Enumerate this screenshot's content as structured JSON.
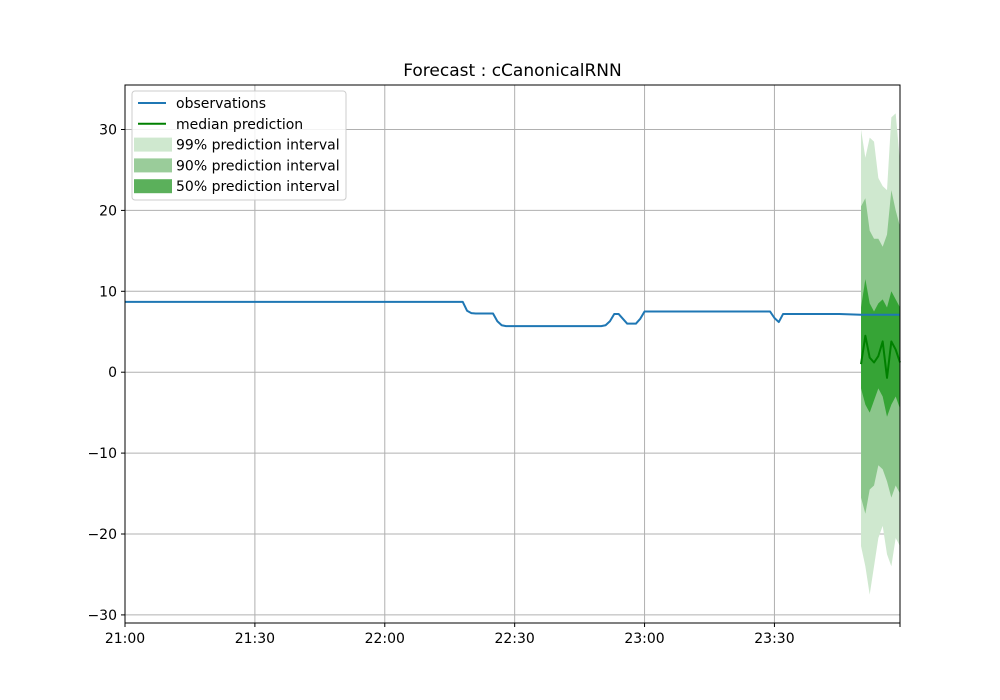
{
  "chart_data": {
    "type": "line",
    "title": "Forecast : cCanonicalRNN",
    "xlabel": "",
    "ylabel": "",
    "x_domain_minutes": [
      0,
      179
    ],
    "ylim": [
      -31,
      35.5
    ],
    "grid": true,
    "legend_position": "upper-left",
    "x_ticks": [
      {
        "label": "21:00",
        "minute": 0
      },
      {
        "label": "21:30",
        "minute": 30
      },
      {
        "label": "22:00",
        "minute": 60
      },
      {
        "label": "22:30",
        "minute": 90
      },
      {
        "label": "23:00",
        "minute": 120
      },
      {
        "label": "23:30",
        "minute": 150
      },
      {
        "label": "",
        "minute": 179
      }
    ],
    "y_ticks": [
      {
        "label": "30",
        "value": 30
      },
      {
        "label": "20",
        "value": 20
      },
      {
        "label": "10",
        "value": 10
      },
      {
        "label": "0",
        "value": 0
      },
      {
        "label": "−10",
        "value": -10
      },
      {
        "label": "−20",
        "value": -20
      },
      {
        "label": "−30",
        "value": -30
      }
    ],
    "colors": {
      "observations": "#1f77b4",
      "median": "#008000",
      "band99": "#cfe8cf",
      "band90": "#7fbf7f",
      "band50": "#2ca02c"
    },
    "legend": [
      {
        "label": "observations",
        "kind": "line",
        "color": "#1f77b4"
      },
      {
        "label": "median prediction",
        "kind": "line",
        "color": "#008000"
      },
      {
        "label": "99% prediction interval",
        "kind": "patch",
        "color": "#cfe8cf"
      },
      {
        "label": "90% prediction interval",
        "kind": "patch",
        "color": "#9acc9a"
      },
      {
        "label": "50% prediction interval",
        "kind": "patch",
        "color": "#5bb05b"
      }
    ],
    "series": [
      {
        "name": "observations",
        "points": [
          [
            0,
            8.7
          ],
          [
            30,
            8.7
          ],
          [
            60,
            8.7
          ],
          [
            70,
            8.7
          ],
          [
            78,
            8.7
          ],
          [
            79,
            7.6
          ],
          [
            80,
            7.3
          ],
          [
            81,
            7.25
          ],
          [
            85,
            7.25
          ],
          [
            86,
            6.3
          ],
          [
            87,
            5.8
          ],
          [
            88,
            5.7
          ],
          [
            95,
            5.7
          ],
          [
            110,
            5.7
          ],
          [
            111,
            5.8
          ],
          [
            112,
            6.3
          ],
          [
            113,
            7.2
          ],
          [
            114,
            7.2
          ],
          [
            115,
            6.6
          ],
          [
            116,
            6.0
          ],
          [
            118,
            6.0
          ],
          [
            119,
            6.6
          ],
          [
            120,
            7.5
          ],
          [
            130,
            7.5
          ],
          [
            145,
            7.5
          ],
          [
            149,
            7.5
          ],
          [
            150,
            6.7
          ],
          [
            151,
            6.2
          ],
          [
            152,
            7.2
          ],
          [
            160,
            7.2
          ],
          [
            165,
            7.2
          ],
          [
            170,
            7.1
          ],
          [
            179,
            7.1
          ]
        ]
      },
      {
        "name": "median prediction",
        "points": [
          [
            170,
            1.0
          ],
          [
            171,
            4.5
          ],
          [
            172,
            1.8
          ],
          [
            173,
            1.2
          ],
          [
            174,
            2.0
          ],
          [
            175,
            3.8
          ],
          [
            176,
            -0.7
          ],
          [
            177,
            3.8
          ],
          [
            178,
            2.8
          ],
          [
            179,
            1.2
          ]
        ]
      }
    ],
    "bands": [
      {
        "name": "99% prediction interval",
        "points": [
          [
            170,
            -21.5,
            30.0
          ],
          [
            171,
            -24.0,
            26.5
          ],
          [
            172,
            -27.5,
            29.0
          ],
          [
            173,
            -24.0,
            28.5
          ],
          [
            174,
            -20.5,
            24.0
          ],
          [
            175,
            -19.0,
            23.0
          ],
          [
            176,
            -22.5,
            22.5
          ],
          [
            177,
            -24.0,
            31.5
          ],
          [
            178,
            -20.5,
            32.0
          ],
          [
            179,
            -21.5,
            26.0
          ]
        ]
      },
      {
        "name": "90% prediction interval",
        "points": [
          [
            170,
            -15.5,
            20.5
          ],
          [
            171,
            -17.5,
            21.5
          ],
          [
            172,
            -14.5,
            17.5
          ],
          [
            173,
            -14.0,
            16.5
          ],
          [
            174,
            -11.5,
            16.5
          ],
          [
            175,
            -12.0,
            15.5
          ],
          [
            176,
            -13.5,
            17.0
          ],
          [
            177,
            -15.5,
            22.5
          ],
          [
            178,
            -14.0,
            20.0
          ],
          [
            179,
            -15.0,
            18.0
          ]
        ]
      },
      {
        "name": "50% prediction interval",
        "points": [
          [
            170,
            -2.0,
            8.0
          ],
          [
            171,
            -4.0,
            11.5
          ],
          [
            172,
            -5.0,
            8.5
          ],
          [
            173,
            -3.5,
            7.5
          ],
          [
            174,
            -2.0,
            8.5
          ],
          [
            175,
            -3.0,
            9.0
          ],
          [
            176,
            -5.5,
            8.0
          ],
          [
            177,
            -4.0,
            10.0
          ],
          [
            178,
            -3.0,
            9.0
          ],
          [
            179,
            -4.5,
            8.0
          ]
        ]
      }
    ]
  }
}
